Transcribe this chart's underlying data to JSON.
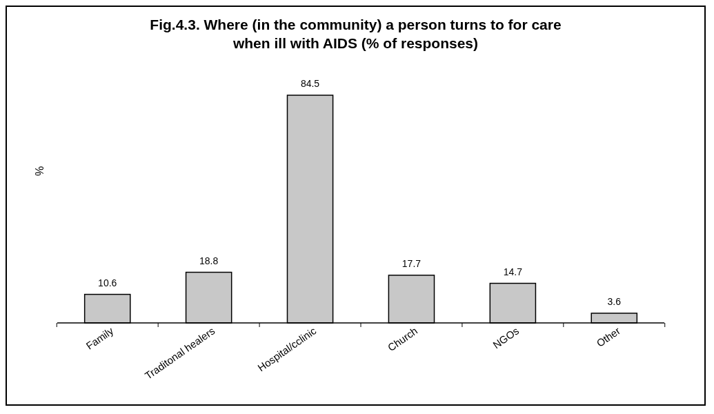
{
  "chart_data": {
    "type": "bar",
    "title": "Fig.4.3. Where (in the community) a person turns to for care when ill with AIDS (% of responses)",
    "ylabel": "%",
    "categories": [
      "Family",
      "Traditonal healers",
      "Hospital/cclinic",
      "Church",
      "NGOs",
      "Other"
    ],
    "values": [
      10.6,
      18.8,
      84.5,
      17.7,
      14.7,
      3.6
    ],
    "color": "#c8c8c8",
    "data_labels": true
  }
}
